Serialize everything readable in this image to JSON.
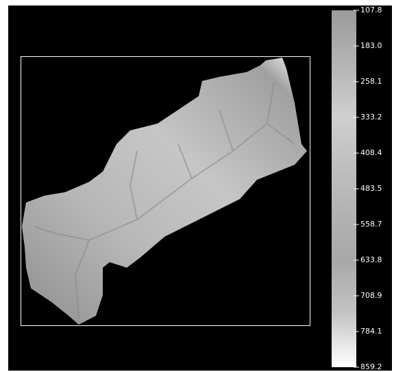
{
  "colorbar": {
    "range": [
      107.8,
      859.2
    ],
    "ticks": [
      107.8,
      {
        "value": 183,
        "label": "183.0"
      },
      258.1,
      333.2,
      408.4,
      483.5,
      558.7,
      633.8,
      708.9,
      784.1,
      859.2
    ]
  }
}
